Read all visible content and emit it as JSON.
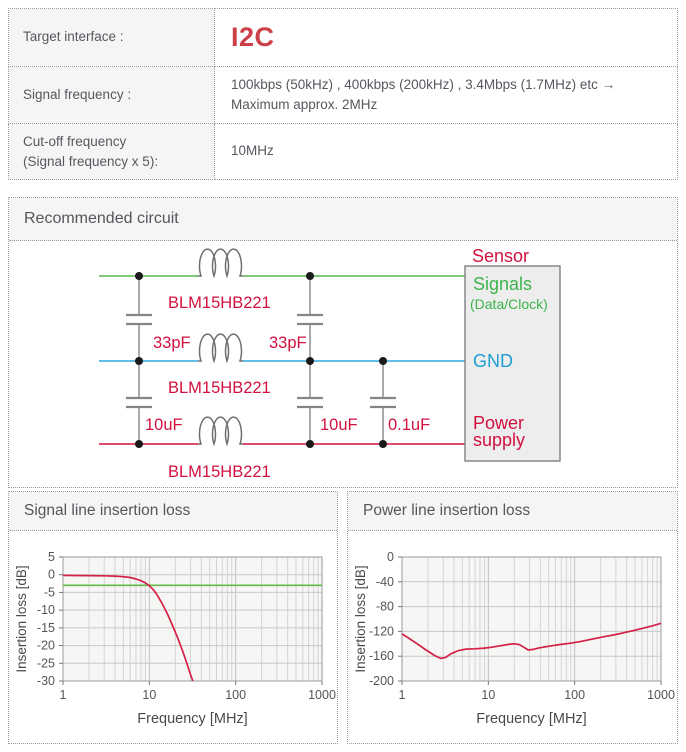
{
  "colors": {
    "accent-red": "#cb4147",
    "label-red": "#d2113e",
    "wire-green": "#53b848",
    "wire-blue": "#2fa8dc",
    "text-green": "#3db44a",
    "text-blue": "#1d9fd4",
    "coil-gray": "#6f6f6f",
    "cap-gray": "#858585",
    "box-fill": "#ededed",
    "box-stroke": "#808080",
    "header-bg": "#f5f5f5",
    "border-gray": "#9c9c9c",
    "body-text": "#57575f",
    "curve-red": "#d42045",
    "curve-green": "#62bb46"
  },
  "spec_table": {
    "rows": [
      {
        "label": "Target interface :",
        "value": "I2C"
      },
      {
        "label": "Signal frequency :",
        "value": "100kbps (50kHz) , 400kbps (200kHz) , 3.4Mbps (1.7MHz) etc →\nMaximum approx. 2MHz"
      },
      {
        "label": "Cut-off frequency\n(Signal frequency x 5):",
        "value": "10MHz"
      }
    ]
  },
  "circuit": {
    "title": "Recommended circuit",
    "sensor_label": "Sensor",
    "ferrite_bead": "BLM15HB221",
    "cap_signal_1": "33pF",
    "cap_signal_2": "33pF",
    "cap_power_1": "10uF",
    "cap_power_2": "10uF",
    "cap_power_3": "0.1uF",
    "box": {
      "signals_line1": "Signals",
      "signals_line2": "(Data/Clock)",
      "gnd": "GND",
      "power_line1": "Power",
      "power_line2": "supply"
    }
  },
  "chart_data": [
    {
      "name": "signal-line-insertion-loss",
      "title": "Signal line insertion loss",
      "type": "line",
      "xscale": "log",
      "xlabel": "Frequency [MHz]",
      "ylabel": "Insertion loss [dB]",
      "xlim": [
        1,
        1000
      ],
      "xticks": [
        1,
        10,
        100,
        1000
      ],
      "ylim": [
        5,
        -30
      ],
      "yticks": [
        5,
        0,
        -5,
        -10,
        -15,
        -20,
        -25,
        -30
      ],
      "grid": true,
      "legend": "none",
      "series": [
        {
          "name": "green-reference-line",
          "color": "#62bb46",
          "points": [
            [
              1,
              -3
            ],
            [
              1000,
              -3
            ]
          ]
        },
        {
          "name": "red-curve",
          "color": "#d42045",
          "points": [
            [
              1,
              -0.2
            ],
            [
              2,
              -0.25
            ],
            [
              3,
              -0.3
            ],
            [
              4,
              -0.4
            ],
            [
              5,
              -0.55
            ],
            [
              6,
              -0.8
            ],
            [
              7,
              -1.2
            ],
            [
              8,
              -1.7
            ],
            [
              9,
              -2.3
            ],
            [
              10,
              -3.1
            ],
            [
              11,
              -4.1
            ],
            [
              12,
              -5.3
            ],
            [
              14,
              -8
            ],
            [
              16,
              -10.8
            ],
            [
              18,
              -13.6
            ],
            [
              21,
              -17.5
            ],
            [
              24,
              -21.2
            ],
            [
              27,
              -24.8
            ],
            [
              30,
              -28.2
            ],
            [
              33,
              -31
            ]
          ]
        }
      ]
    },
    {
      "name": "power-line-insertion-loss",
      "title": "Power line insertion loss",
      "type": "line",
      "xscale": "log",
      "xlabel": "Frequency [MHz]",
      "ylabel": "Insertion loss [dB]",
      "xlim": [
        1,
        1000
      ],
      "xticks": [
        1,
        10,
        100,
        1000
      ],
      "ylim": [
        0,
        -200
      ],
      "yticks": [
        0,
        -40,
        -80,
        -120,
        -160,
        -200
      ],
      "grid": true,
      "legend": "none",
      "series": [
        {
          "name": "red-curve",
          "color": "#d42045",
          "points": [
            [
              1,
              -124
            ],
            [
              1.2,
              -131
            ],
            [
              1.5,
              -140
            ],
            [
              1.9,
              -150
            ],
            [
              2.4,
              -159
            ],
            [
              2.8,
              -163.5
            ],
            [
              3.2,
              -162
            ],
            [
              3.7,
              -156
            ],
            [
              4.5,
              -151
            ],
            [
              5.5,
              -148.5
            ],
            [
              7,
              -148
            ],
            [
              9,
              -147
            ],
            [
              11,
              -145.5
            ],
            [
              14,
              -143
            ],
            [
              17,
              -141
            ],
            [
              20,
              -140
            ],
            [
              23,
              -141.5
            ],
            [
              26,
              -146
            ],
            [
              29,
              -150
            ],
            [
              33,
              -149
            ],
            [
              38,
              -147
            ],
            [
              45,
              -145
            ],
            [
              55,
              -143
            ],
            [
              70,
              -141
            ],
            [
              90,
              -139
            ],
            [
              120,
              -136
            ],
            [
              160,
              -132.5
            ],
            [
              220,
              -128.5
            ],
            [
              300,
              -125
            ],
            [
              420,
              -120.5
            ],
            [
              600,
              -115.5
            ],
            [
              800,
              -111
            ],
            [
              1000,
              -107
            ]
          ]
        }
      ]
    }
  ]
}
